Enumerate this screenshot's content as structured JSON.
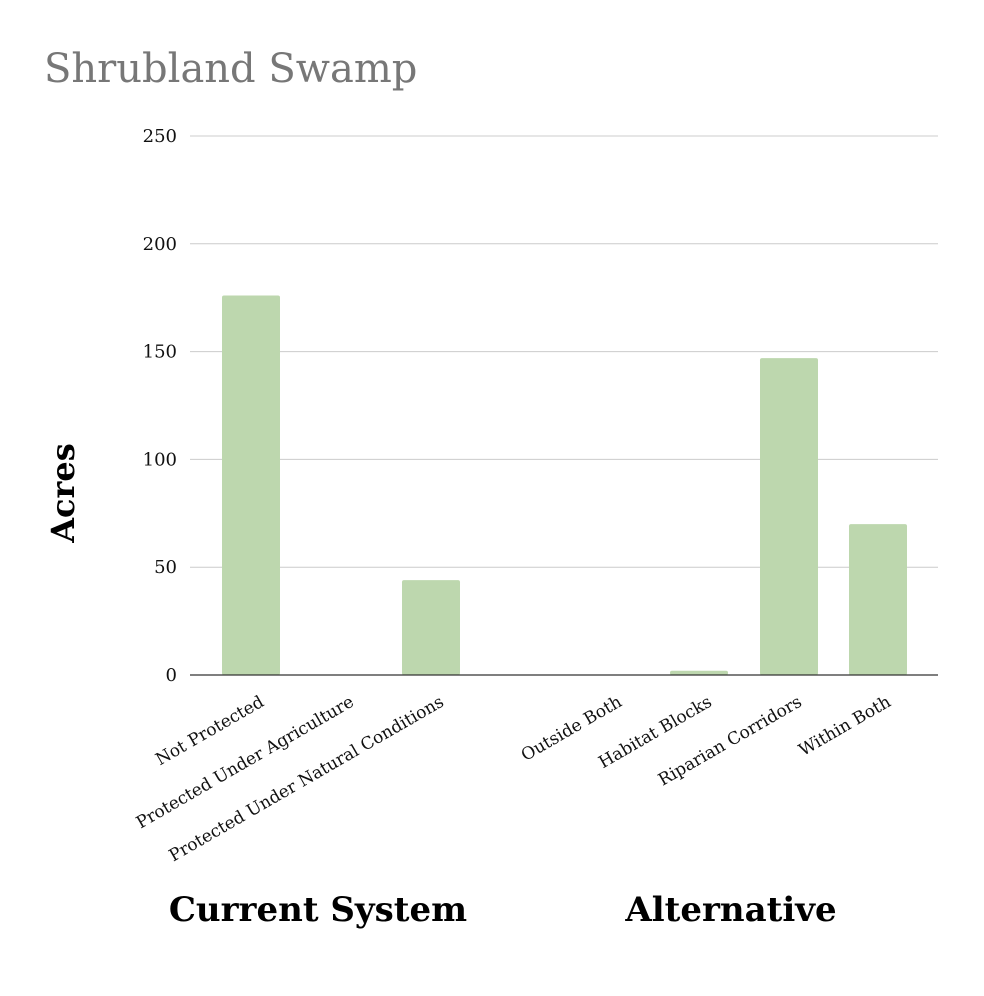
{
  "chart_data": {
    "type": "bar",
    "title": "Shrubland Swamp",
    "ylabel": "Acres",
    "xlabel": "",
    "ylim": [
      0,
      250
    ],
    "yticks": [
      0,
      50,
      100,
      150,
      200,
      250
    ],
    "grid": true,
    "bar_color": "#bdd7ae",
    "categories": [
      "Not Protected",
      "Protected Under Agriculture",
      "Protected Under Natural Conditions",
      "Outside Both",
      "Habitat Blocks",
      "Riparian Corridors",
      "Within Both"
    ],
    "values": [
      176,
      0,
      44,
      0,
      2,
      147,
      70
    ],
    "groups": [
      {
        "label": "Current System",
        "categories": [
          "Not Protected",
          "Protected Under Agriculture",
          "Protected Under Natural Conditions"
        ]
      },
      {
        "label": "Alternative",
        "categories": [
          "Outside Both",
          "Habitat Blocks",
          "Riparian Corridors",
          "Within Both"
        ]
      }
    ]
  }
}
